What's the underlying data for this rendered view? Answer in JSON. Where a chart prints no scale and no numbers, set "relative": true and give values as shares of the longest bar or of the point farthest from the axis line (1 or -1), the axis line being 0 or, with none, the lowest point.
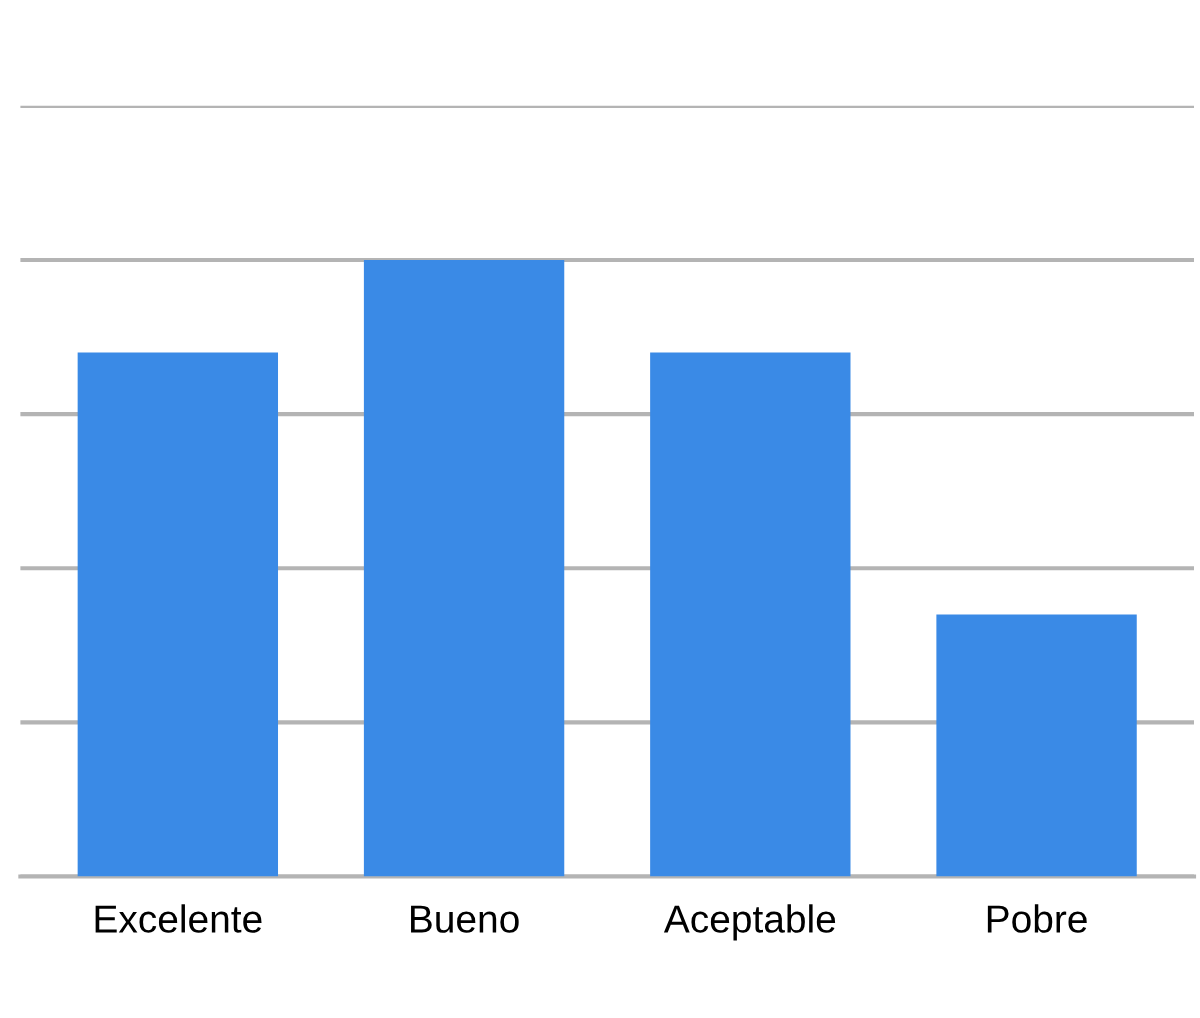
{
  "chart_data": {
    "type": "bar",
    "relative": true,
    "categories": [
      "Excelente",
      "Bueno",
      "Aceptable",
      "Pobre"
    ],
    "values": [
      0.85,
      1,
      0.85,
      0.425
    ],
    "color": "#3a8ae6",
    "grid": "y"
  }
}
